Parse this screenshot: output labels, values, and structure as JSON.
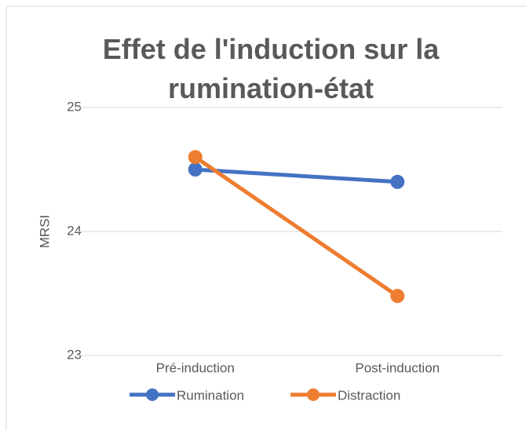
{
  "chart_data": {
    "type": "line",
    "title": "Effet de l'induction sur la rumination-état",
    "y_label": "MRSI",
    "categories": [
      "Pré-induction",
      "Post-induction"
    ],
    "series": [
      {
        "name": "Rumination",
        "color": "#4472c4",
        "values": [
          24.5,
          24.4
        ]
      },
      {
        "name": "Distraction",
        "color": "#ed7d31",
        "values": [
          24.6,
          23.48
        ]
      }
    ],
    "ylim": [
      23,
      25
    ],
    "yticks": [
      23,
      24,
      25
    ],
    "grid": true,
    "legend": "bottom"
  }
}
